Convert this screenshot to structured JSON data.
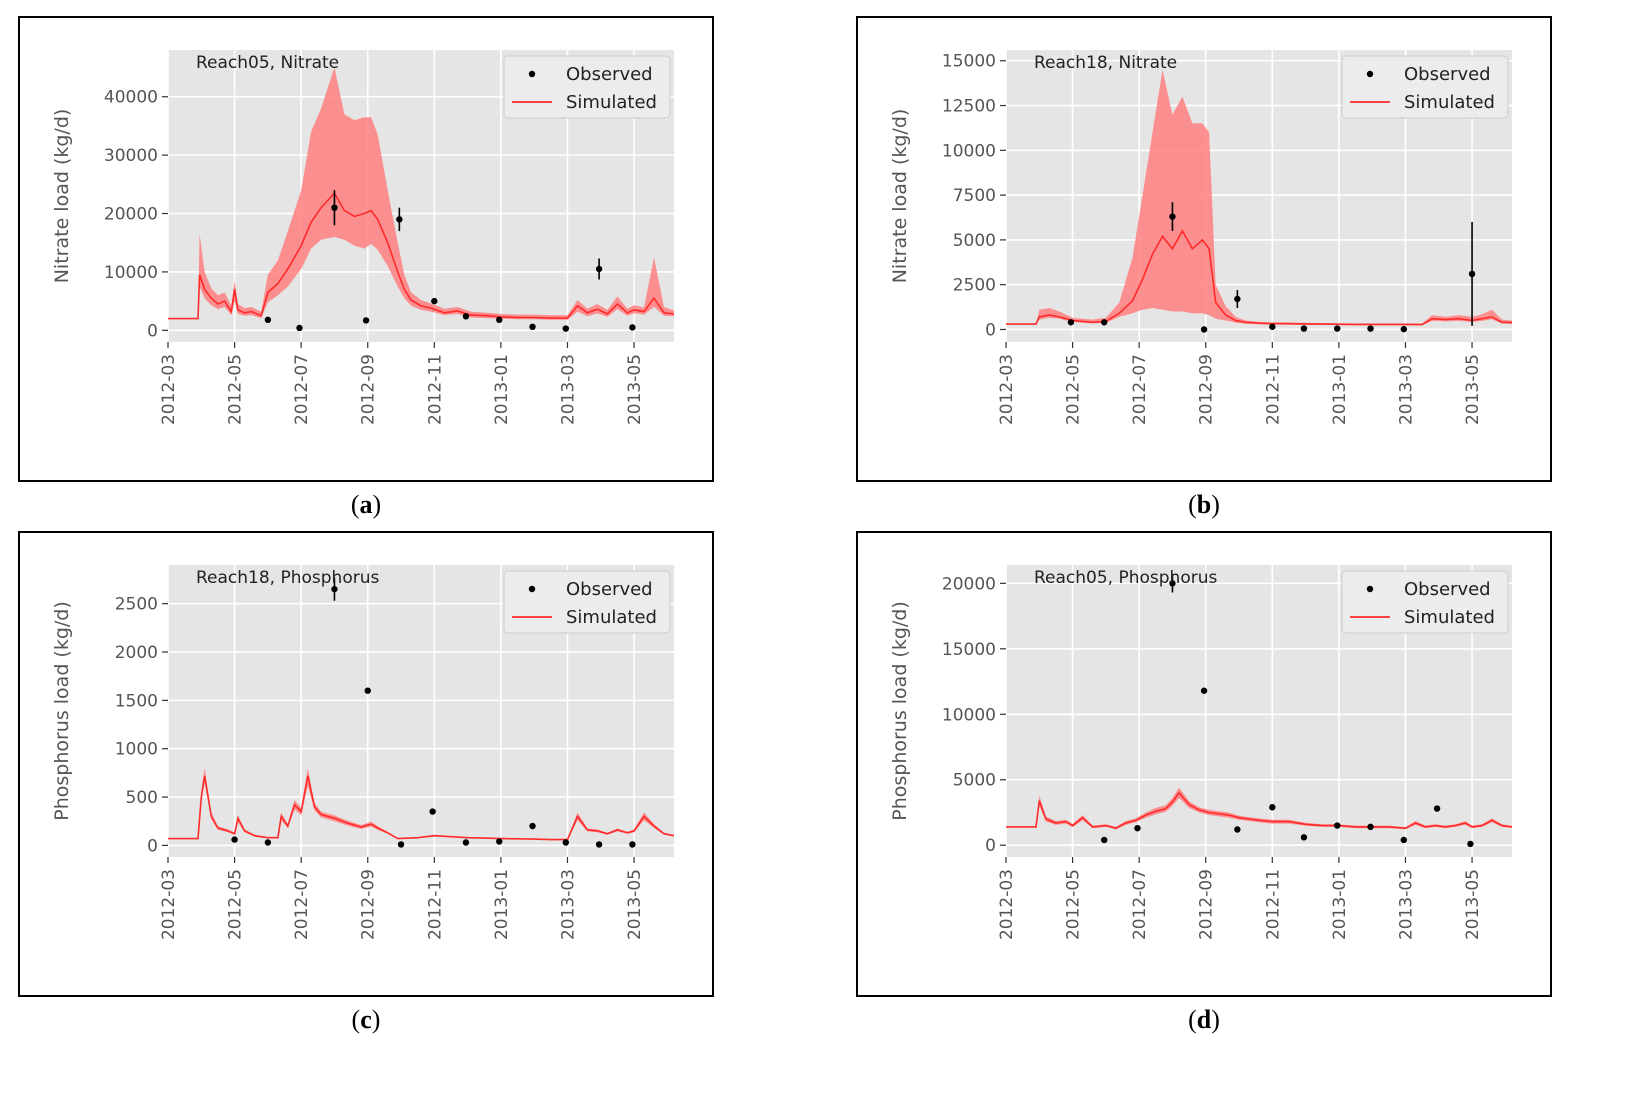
{
  "x_tick_labels": [
    "2012-03",
    "2012-05",
    "2012-07",
    "2012-09",
    "2012-11",
    "2013-01",
    "2013-03",
    "2013-05"
  ],
  "panels": [
    {
      "caption_letter": "a",
      "chart_id": "a"
    },
    {
      "caption_letter": "b",
      "chart_id": "b"
    },
    {
      "caption_letter": "c",
      "chart_id": "c"
    },
    {
      "caption_letter": "d",
      "chart_id": "d"
    }
  ],
  "colors": {
    "panel_bg": "#e5e5e5",
    "grid": "#ffffff",
    "simulated": "#ff2a2a",
    "band": "#ff8080",
    "observed": "#000000",
    "axis_text": "#555555"
  },
  "chart_data": [
    {
      "id": "a",
      "type": "line",
      "title": "Reach05, Nitrate",
      "ylabel": "Nitrate load (kg/d)",
      "xlabel": "",
      "xlim": [
        0,
        15.2
      ],
      "ylim": [
        -2000,
        48000
      ],
      "yticks": [
        0,
        10000,
        20000,
        30000,
        40000
      ],
      "ytick_labels": [
        "0",
        "10000",
        "20000",
        "30000",
        "40000"
      ],
      "legend": {
        "position": "top-right",
        "entries": [
          "Observed",
          "Simulated"
        ]
      },
      "simulated": {
        "x": [
          0,
          0.9,
          0.95,
          1.1,
          1.3,
          1.5,
          1.7,
          1.9,
          2.0,
          2.1,
          2.3,
          2.5,
          2.8,
          3.0,
          3.3,
          3.6,
          4.0,
          4.3,
          4.6,
          5.0,
          5.3,
          5.6,
          5.9,
          6.1,
          6.3,
          6.6,
          6.9,
          7.1,
          7.3,
          7.6,
          7.9,
          8.3,
          8.7,
          9.1,
          9.6,
          10.0,
          10.5,
          11.0,
          11.5,
          12.0,
          12.3,
          12.6,
          12.9,
          13.2,
          13.5,
          13.8,
          14.0,
          14.3,
          14.6,
          14.9,
          15.2
        ],
        "y": [
          2000,
          2000,
          9500,
          7000,
          5500,
          4500,
          5000,
          3200,
          7000,
          3500,
          3000,
          3200,
          2500,
          6500,
          8000,
          10500,
          14500,
          18500,
          21000,
          23500,
          20500,
          19500,
          20000,
          20500,
          19000,
          15000,
          10000,
          7000,
          5200,
          4200,
          3800,
          3000,
          3300,
          2600,
          2500,
          2300,
          2200,
          2200,
          2100,
          2100,
          4200,
          3000,
          3600,
          2800,
          4500,
          3000,
          3500,
          3200,
          5500,
          3000,
          2800
        ],
        "lower": [
          2000,
          2000,
          7500,
          5500,
          4300,
          3600,
          4000,
          2600,
          5000,
          2800,
          2500,
          2600,
          2100,
          4800,
          6000,
          7500,
          10500,
          14000,
          15500,
          16000,
          15500,
          14500,
          14000,
          14800,
          13800,
          11000,
          7500,
          5500,
          4200,
          3500,
          3200,
          2600,
          2800,
          2200,
          2100,
          2000,
          1900,
          1900,
          1800,
          1800,
          3200,
          2400,
          2900,
          2300,
          3600,
          2500,
          2900,
          2700,
          4000,
          2500,
          2400
        ],
        "upper": [
          2000,
          2000,
          16500,
          10000,
          7200,
          6000,
          6500,
          4200,
          8500,
          4500,
          3800,
          4000,
          3200,
          9500,
          12000,
          17000,
          24000,
          34000,
          38000,
          45000,
          37000,
          36000,
          36500,
          36500,
          33500,
          24000,
          15000,
          9500,
          6500,
          5200,
          4600,
          3700,
          4000,
          3200,
          3000,
          2800,
          2700,
          2700,
          2600,
          2600,
          5200,
          3700,
          4500,
          3500,
          5800,
          3700,
          4300,
          3900,
          12500,
          4000,
          3400
        ]
      },
      "observed": {
        "x": [
          3.0,
          3.95,
          5.0,
          5.95,
          6.95,
          8.0,
          8.95,
          9.95,
          10.95,
          11.95,
          12.95,
          13.95
        ],
        "y": [
          1800,
          400,
          21000,
          1700,
          19000,
          5000,
          2400,
          1800,
          600,
          300,
          10500,
          500
        ],
        "err": [
          0,
          0,
          3000,
          0,
          2000,
          0,
          0,
          0,
          0,
          0,
          1800,
          0
        ]
      }
    },
    {
      "id": "b",
      "type": "line",
      "title": "Reach18, Nitrate",
      "ylabel": "Nitrate load (kg/d)",
      "xlabel": "",
      "xlim": [
        0,
        15.2
      ],
      "ylim": [
        -700,
        15600
      ],
      "yticks": [
        0,
        2500,
        5000,
        7500,
        10000,
        12500,
        15000
      ],
      "ytick_labels": [
        "0",
        "2500",
        "5000",
        "7500",
        "10000",
        "12500",
        "15000"
      ],
      "legend": {
        "position": "top-right",
        "entries": [
          "Observed",
          "Simulated"
        ]
      },
      "simulated": {
        "x": [
          0,
          0.9,
          1.0,
          1.3,
          1.6,
          2.0,
          2.3,
          2.6,
          3.0,
          3.4,
          3.8,
          4.1,
          4.4,
          4.7,
          5.0,
          5.3,
          5.6,
          5.9,
          6.1,
          6.3,
          6.6,
          6.9,
          7.2,
          7.6,
          8.0,
          8.5,
          9.0,
          9.5,
          10.0,
          10.5,
          11.0,
          11.5,
          12.0,
          12.5,
          12.8,
          13.2,
          13.6,
          14.0,
          14.3,
          14.6,
          14.9,
          15.2
        ],
        "y": [
          300,
          300,
          700,
          800,
          700,
          500,
          450,
          400,
          450,
          900,
          1600,
          2800,
          4200,
          5200,
          4500,
          5500,
          4500,
          5000,
          4500,
          1500,
          800,
          500,
          400,
          350,
          320,
          320,
          300,
          300,
          290,
          280,
          280,
          280,
          280,
          270,
          600,
          550,
          600,
          500,
          600,
          700,
          400,
          380
        ],
        "lower": [
          300,
          300,
          550,
          650,
          600,
          420,
          380,
          340,
          380,
          700,
          900,
          1100,
          1200,
          1100,
          1000,
          1000,
          900,
          900,
          800,
          600,
          500,
          380,
          320,
          290,
          280,
          270,
          260,
          260,
          250,
          240,
          240,
          240,
          240,
          230,
          480,
          450,
          480,
          420,
          480,
          560,
          330,
          320
        ],
        "upper": [
          300,
          300,
          1100,
          1200,
          1000,
          650,
          600,
          550,
          650,
          1500,
          4000,
          7500,
          11000,
          14500,
          12000,
          13000,
          11500,
          11500,
          11000,
          2500,
          1300,
          700,
          500,
          430,
          400,
          390,
          370,
          360,
          350,
          340,
          340,
          340,
          340,
          330,
          800,
          700,
          800,
          700,
          850,
          1100,
          550,
          500
        ]
      },
      "observed": {
        "x": [
          1.95,
          2.95,
          5.0,
          5.95,
          6.95,
          8.0,
          8.95,
          9.95,
          10.95,
          11.95,
          14.0
        ],
        "y": [
          400,
          400,
          6300,
          0,
          1700,
          150,
          50,
          50,
          50,
          20,
          3100
        ],
        "err": [
          0,
          0,
          800,
          0,
          500,
          0,
          0,
          0,
          0,
          0,
          2900
        ]
      }
    },
    {
      "id": "c",
      "type": "line",
      "title": "Reach18, Phosphorus",
      "ylabel": "Phosphorus load (kg/d)",
      "xlabel": "",
      "xlim": [
        0,
        15.2
      ],
      "ylim": [
        -120,
        2900
      ],
      "yticks": [
        0,
        500,
        1000,
        1500,
        2000,
        2500
      ],
      "ytick_labels": [
        "0",
        "500",
        "1000",
        "1500",
        "2000",
        "2500"
      ],
      "legend": {
        "position": "top-right",
        "entries": [
          "Observed",
          "Simulated"
        ]
      },
      "simulated": {
        "x": [
          0,
          0.9,
          1.0,
          1.1,
          1.3,
          1.5,
          1.8,
          2.0,
          2.1,
          2.3,
          2.6,
          3.0,
          3.3,
          3.4,
          3.6,
          3.8,
          4.0,
          4.2,
          4.4,
          4.6,
          5.0,
          5.4,
          5.8,
          6.1,
          6.3,
          6.6,
          6.9,
          7.5,
          8.0,
          8.5,
          9.0,
          9.5,
          10.0,
          10.5,
          11.0,
          11.5,
          12.0,
          12.3,
          12.6,
          12.9,
          13.2,
          13.5,
          13.8,
          14.0,
          14.3,
          14.6,
          14.9,
          15.2
        ],
        "y": [
          70,
          70,
          500,
          720,
          300,
          180,
          150,
          120,
          280,
          150,
          100,
          80,
          80,
          300,
          200,
          420,
          350,
          720,
          400,
          320,
          280,
          230,
          190,
          220,
          180,
          130,
          70,
          80,
          100,
          90,
          80,
          75,
          70,
          68,
          65,
          60,
          60,
          300,
          160,
          150,
          120,
          160,
          130,
          150,
          300,
          200,
          120,
          100
        ],
        "lower": [
          70,
          70,
          450,
          650,
          270,
          160,
          135,
          110,
          240,
          135,
          90,
          75,
          75,
          260,
          180,
          370,
          310,
          620,
          360,
          290,
          250,
          205,
          170,
          195,
          160,
          120,
          65,
          75,
          95,
          85,
          75,
          70,
          65,
          63,
          60,
          56,
          56,
          260,
          145,
          135,
          110,
          145,
          120,
          135,
          260,
          180,
          110,
          95
        ],
        "upper": [
          70,
          70,
          560,
          800,
          340,
          200,
          165,
          130,
          310,
          165,
          110,
          85,
          85,
          340,
          220,
          470,
          390,
          800,
          440,
          350,
          310,
          255,
          210,
          245,
          200,
          140,
          75,
          85,
          110,
          95,
          85,
          80,
          75,
          72,
          70,
          64,
          64,
          340,
          175,
          165,
          130,
          175,
          140,
          165,
          340,
          220,
          130,
          110
        ]
      },
      "observed": {
        "x": [
          2.0,
          3.0,
          5.0,
          6.0,
          7.0,
          7.95,
          8.95,
          9.95,
          10.95,
          11.95,
          12.95,
          13.95
        ],
        "y": [
          60,
          30,
          2650,
          1600,
          10,
          350,
          30,
          40,
          200,
          30,
          10,
          10
        ],
        "err": [
          0,
          0,
          120,
          0,
          0,
          0,
          0,
          0,
          0,
          0,
          0,
          0
        ]
      }
    },
    {
      "id": "d",
      "type": "line",
      "title": "Reach05, Phosphorus",
      "ylabel": "Phosphorus load (kg/d)",
      "xlabel": "",
      "xlim": [
        0,
        15.2
      ],
      "ylim": [
        -900,
        21400
      ],
      "yticks": [
        0,
        5000,
        10000,
        15000,
        20000
      ],
      "ytick_labels": [
        "0",
        "5000",
        "10000",
        "15000",
        "20000"
      ],
      "legend": {
        "position": "top-right",
        "entries": [
          "Observed",
          "Simulated"
        ]
      },
      "simulated": {
        "x": [
          0,
          0.9,
          1.0,
          1.2,
          1.5,
          1.8,
          2.0,
          2.3,
          2.6,
          3.0,
          3.3,
          3.6,
          3.9,
          4.2,
          4.5,
          4.8,
          5.0,
          5.2,
          5.5,
          5.8,
          6.1,
          6.4,
          6.7,
          7.0,
          7.3,
          7.6,
          8.0,
          8.5,
          9.0,
          9.5,
          10.0,
          10.5,
          11.0,
          11.5,
          12.0,
          12.3,
          12.6,
          12.9,
          13.2,
          13.5,
          13.8,
          14.0,
          14.3,
          14.6,
          14.9,
          15.2
        ],
        "y": [
          1400,
          1400,
          3400,
          2000,
          1700,
          1800,
          1500,
          2100,
          1400,
          1500,
          1300,
          1700,
          1900,
          2300,
          2600,
          2800,
          3300,
          4000,
          3100,
          2700,
          2500,
          2400,
          2300,
          2100,
          2000,
          1900,
          1800,
          1800,
          1600,
          1500,
          1500,
          1400,
          1400,
          1400,
          1300,
          1700,
          1400,
          1500,
          1400,
          1500,
          1700,
          1400,
          1500,
          1900,
          1500,
          1400
        ],
        "lower": [
          1400,
          1400,
          3000,
          1800,
          1550,
          1650,
          1380,
          1900,
          1300,
          1400,
          1200,
          1550,
          1750,
          2100,
          2350,
          2550,
          3000,
          3600,
          2850,
          2500,
          2300,
          2200,
          2100,
          1950,
          1850,
          1750,
          1650,
          1650,
          1480,
          1400,
          1400,
          1300,
          1300,
          1300,
          1220,
          1550,
          1300,
          1400,
          1300,
          1400,
          1560,
          1300,
          1400,
          1750,
          1400,
          1320
        ],
        "upper": [
          1400,
          1400,
          3800,
          2200,
          1850,
          1950,
          1620,
          2300,
          1500,
          1600,
          1400,
          1850,
          2050,
          2500,
          2850,
          3050,
          3600,
          4400,
          3350,
          2900,
          2700,
          2600,
          2500,
          2250,
          2150,
          2050,
          1950,
          1950,
          1720,
          1600,
          1600,
          1500,
          1500,
          1500,
          1380,
          1850,
          1500,
          1600,
          1500,
          1600,
          1840,
          1500,
          1600,
          2050,
          1600,
          1480
        ]
      },
      "observed": {
        "x": [
          2.95,
          3.95,
          5.0,
          5.95,
          6.95,
          8.0,
          8.95,
          9.95,
          10.95,
          11.95,
          12.95,
          13.95
        ],
        "y": [
          400,
          1300,
          20000,
          11800,
          1200,
          2900,
          600,
          1500,
          1400,
          400,
          2800,
          100
        ],
        "err": [
          0,
          0,
          700,
          0,
          0,
          0,
          0,
          0,
          0,
          0,
          0,
          0
        ]
      }
    }
  ]
}
